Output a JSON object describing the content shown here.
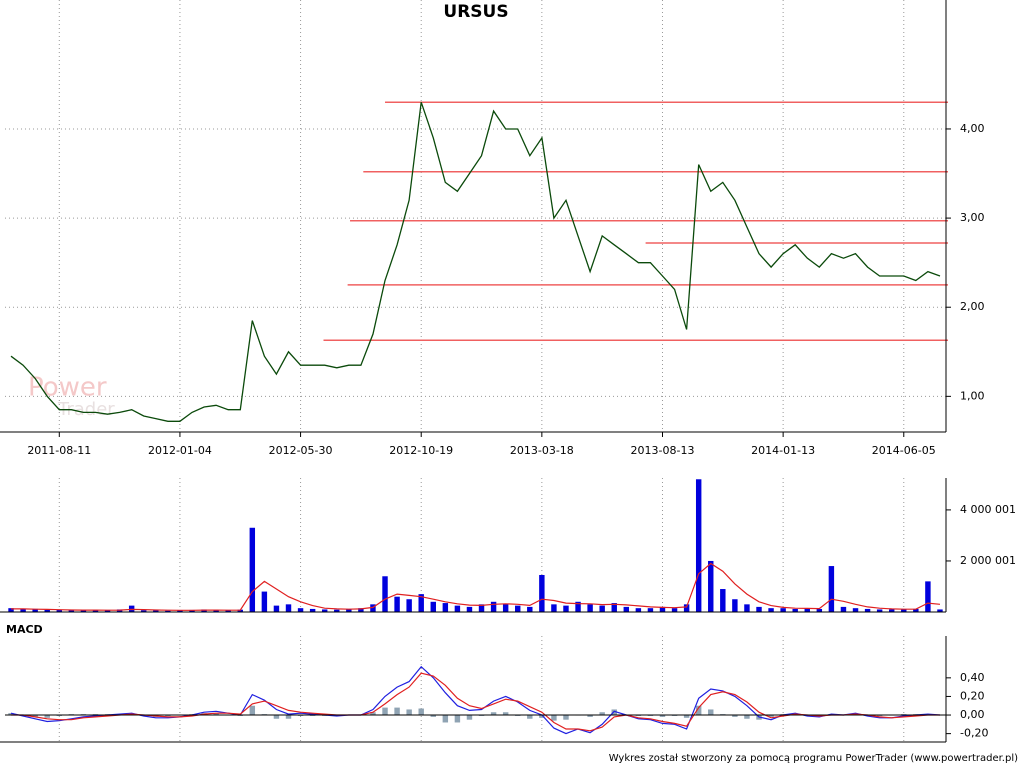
{
  "footer": "Wykres został stworzony za pomocą programu PowerTrader (www.powertrader.pl)",
  "watermark": [
    "Power",
    "Trader"
  ],
  "chart_data": [
    {
      "type": "line",
      "title": "URSUS",
      "xlim": [
        -0.5,
        77.5
      ],
      "xticks": [
        {
          "value": 4,
          "label": "2011-08-11"
        },
        {
          "value": 14,
          "label": "2012-01-04"
        },
        {
          "value": 24,
          "label": "2012-05-30"
        },
        {
          "value": 34,
          "label": "2012-10-19"
        },
        {
          "value": 44,
          "label": "2013-03-18"
        },
        {
          "value": 54,
          "label": "2013-08-13"
        },
        {
          "value": 64,
          "label": "2014-01-13"
        },
        {
          "value": 74,
          "label": "2014-06-05"
        }
      ],
      "ylim": [
        0.6,
        5.2
      ],
      "yticks": [
        {
          "value": 1,
          "label": "1,00"
        },
        {
          "value": 2,
          "label": "2,00"
        },
        {
          "value": 3,
          "label": "3,00"
        },
        {
          "value": 4,
          "label": "4,00"
        }
      ],
      "grid": true,
      "series": [
        {
          "color": "#0b4a0b",
          "values": [
            1.45,
            1.35,
            1.2,
            1.0,
            0.85,
            0.85,
            0.82,
            0.82,
            0.8,
            0.82,
            0.85,
            0.78,
            0.75,
            0.72,
            0.72,
            0.82,
            0.88,
            0.9,
            0.85,
            0.85,
            1.85,
            1.45,
            1.25,
            1.5,
            1.35,
            1.35,
            1.35,
            1.32,
            1.35,
            1.35,
            1.7,
            2.3,
            2.7,
            3.2,
            4.3,
            3.9,
            3.4,
            3.3,
            3.5,
            3.7,
            4.2,
            4.0,
            4.0,
            3.7,
            3.9,
            3.0,
            3.2,
            2.8,
            2.4,
            2.8,
            2.7,
            2.6,
            2.5,
            2.5,
            2.35,
            2.2,
            1.75,
            3.6,
            3.3,
            3.4,
            3.2,
            2.9,
            2.6,
            2.45,
            2.6,
            2.7,
            2.55,
            2.45,
            2.6,
            2.55,
            2.6,
            2.45,
            2.35,
            2.35,
            2.35,
            2.3,
            2.4,
            2.35
          ]
        }
      ],
      "hlines": {
        "color": "#f06060",
        "levels": [
          {
            "value": 4.3,
            "from": 31.0
          },
          {
            "value": 3.52,
            "from": 29.2
          },
          {
            "value": 2.97,
            "from": 28.1
          },
          {
            "value": 2.72,
            "from": 52.6
          },
          {
            "value": 2.25,
            "from": 27.9
          },
          {
            "value": 1.63,
            "from": 25.9
          }
        ]
      }
    },
    {
      "type": "bar",
      "xlim": [
        -0.5,
        77.5
      ],
      "ylim": [
        0,
        5250000
      ],
      "yticks": [
        {
          "value": 2000001,
          "label": "2 000 001"
        },
        {
          "value": 4000001,
          "label": "4 000 001"
        }
      ],
      "grid": true,
      "series": [
        {
          "color": "#0000dd",
          "style": "bar",
          "values": [
            150000,
            100000,
            120000,
            80000,
            90000,
            70000,
            60000,
            80000,
            60000,
            100000,
            250000,
            70000,
            60000,
            50000,
            60000,
            80000,
            100000,
            70000,
            60000,
            90000,
            3300000,
            800000,
            250000,
            300000,
            150000,
            120000,
            100000,
            90000,
            120000,
            150000,
            300000,
            1400000,
            600000,
            500000,
            700000,
            400000,
            350000,
            250000,
            200000,
            300000,
            400000,
            300000,
            250000,
            200000,
            1450000,
            300000,
            250000,
            400000,
            300000,
            250000,
            350000,
            200000,
            150000,
            150000,
            200000,
            150000,
            300000,
            5200000,
            2000000,
            900000,
            500000,
            300000,
            200000,
            150000,
            150000,
            120000,
            150000,
            120000,
            1800000,
            200000,
            150000,
            120000,
            100000,
            100000,
            100000,
            120000,
            1200000,
            100000
          ]
        },
        {
          "color": "#e02020",
          "style": "line",
          "values": [
            120000,
            120000,
            110000,
            100000,
            90000,
            80000,
            75000,
            75000,
            70000,
            75000,
            100000,
            95000,
            80000,
            70000,
            65000,
            65000,
            75000,
            75000,
            70000,
            75000,
            800000,
            1200000,
            900000,
            600000,
            400000,
            250000,
            150000,
            120000,
            110000,
            120000,
            180000,
            500000,
            700000,
            650000,
            600000,
            500000,
            400000,
            320000,
            270000,
            260000,
            300000,
            320000,
            300000,
            260000,
            500000,
            450000,
            350000,
            330000,
            320000,
            290000,
            300000,
            280000,
            240000,
            200000,
            180000,
            170000,
            200000,
            1500000,
            1900000,
            1600000,
            1100000,
            700000,
            400000,
            250000,
            180000,
            150000,
            140000,
            135000,
            500000,
            420000,
            300000,
            200000,
            150000,
            120000,
            110000,
            110000,
            350000,
            300000
          ]
        }
      ]
    },
    {
      "type": "line",
      "title": "MACD",
      "xlim": [
        -0.5,
        77.5
      ],
      "ylim": [
        -0.29,
        0.85
      ],
      "yticks": [
        {
          "value": -0.2,
          "label": "-0,20"
        },
        {
          "value": 0,
          "label": "0,00"
        },
        {
          "value": 0.2,
          "label": "0,20"
        },
        {
          "value": 0.4,
          "label": "0,40"
        }
      ],
      "grid": true,
      "series": [
        {
          "color": "#8fa3b3",
          "style": "bar",
          "values": [
            0.02,
            -0.01,
            -0.02,
            -0.03,
            -0.01,
            0.01,
            0.01,
            0.01,
            0.01,
            0.01,
            0.01,
            -0.01,
            -0.02,
            -0.01,
            0.0,
            0.01,
            0.02,
            0.02,
            0.0,
            -0.01,
            0.1,
            0.01,
            -0.04,
            -0.04,
            -0.01,
            -0.01,
            -0.01,
            -0.01,
            0.0,
            0.0,
            0.03,
            0.08,
            0.08,
            0.06,
            0.07,
            -0.02,
            -0.08,
            -0.08,
            -0.05,
            -0.01,
            0.03,
            0.03,
            -0.01,
            -0.04,
            -0.03,
            -0.06,
            -0.05,
            0.0,
            -0.02,
            0.03,
            0.06,
            0.0,
            -0.01,
            -0.01,
            -0.02,
            -0.01,
            -0.03,
            0.1,
            0.06,
            0.01,
            -0.02,
            -0.04,
            -0.05,
            -0.02,
            0.01,
            0.01,
            -0.01,
            -0.01,
            0.01,
            0.0,
            0.01,
            -0.01,
            -0.01,
            0.0,
            0.01,
            0.01,
            0.01,
            0.0
          ]
        },
        {
          "color": "#2020e0",
          "style": "line",
          "values": [
            0.02,
            -0.01,
            -0.04,
            -0.07,
            -0.06,
            -0.04,
            -0.02,
            -0.01,
            0.0,
            0.01,
            0.02,
            -0.01,
            -0.03,
            -0.03,
            -0.02,
            0.0,
            0.03,
            0.04,
            0.02,
            0.0,
            0.22,
            0.16,
            0.06,
            0.01,
            0.02,
            0.01,
            0.0,
            -0.01,
            0.0,
            0.0,
            0.06,
            0.2,
            0.3,
            0.36,
            0.52,
            0.4,
            0.24,
            0.1,
            0.05,
            0.06,
            0.15,
            0.2,
            0.14,
            0.05,
            0.0,
            -0.14,
            -0.2,
            -0.15,
            -0.19,
            -0.1,
            0.04,
            0.0,
            -0.04,
            -0.05,
            -0.09,
            -0.1,
            -0.15,
            0.18,
            0.28,
            0.26,
            0.2,
            0.1,
            -0.02,
            -0.05,
            0.0,
            0.02,
            -0.01,
            -0.02,
            0.01,
            0.0,
            0.02,
            -0.01,
            -0.03,
            -0.03,
            -0.01,
            0.0,
            0.01,
            0.0
          ]
        },
        {
          "color": "#e02020",
          "style": "line",
          "values": [
            0.0,
            0.0,
            -0.02,
            -0.04,
            -0.05,
            -0.05,
            -0.03,
            -0.02,
            -0.01,
            0.0,
            0.01,
            0.0,
            -0.01,
            -0.02,
            -0.02,
            -0.01,
            0.01,
            0.02,
            0.02,
            0.01,
            0.12,
            0.15,
            0.1,
            0.05,
            0.03,
            0.02,
            0.01,
            0.0,
            0.0,
            0.0,
            0.03,
            0.12,
            0.22,
            0.3,
            0.45,
            0.42,
            0.32,
            0.18,
            0.1,
            0.07,
            0.12,
            0.17,
            0.15,
            0.09,
            0.03,
            -0.08,
            -0.15,
            -0.15,
            -0.17,
            -0.13,
            -0.02,
            0.0,
            -0.03,
            -0.04,
            -0.07,
            -0.09,
            -0.12,
            0.08,
            0.22,
            0.25,
            0.22,
            0.14,
            0.03,
            -0.03,
            -0.01,
            0.01,
            0.0,
            -0.01,
            0.0,
            0.0,
            0.01,
            0.0,
            -0.02,
            -0.03,
            -0.02,
            -0.01,
            0.0,
            0.0
          ]
        }
      ]
    }
  ]
}
